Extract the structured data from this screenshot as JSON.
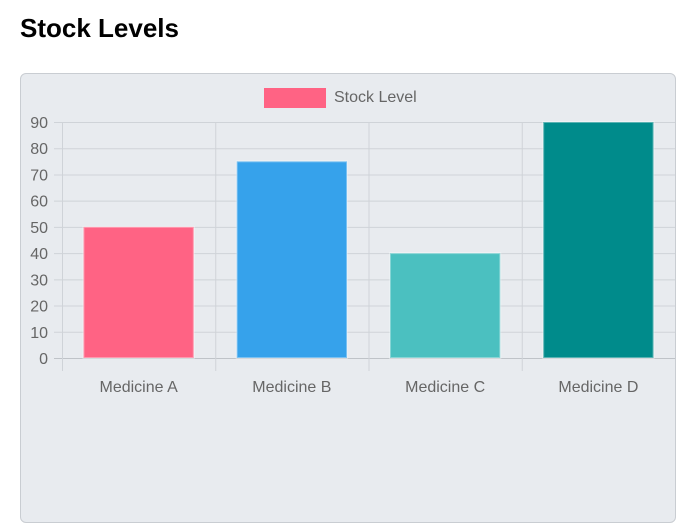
{
  "page": {
    "title": "Stock Levels"
  },
  "chart_data": {
    "type": "bar",
    "categories": [
      "Medicine A",
      "Medicine B",
      "Medicine C",
      "Medicine D"
    ],
    "series": [
      {
        "name": "Stock Level",
        "values": [
          50,
          75,
          40,
          90
        ]
      }
    ],
    "bar_colors": [
      "#ff6384",
      "#36a2eb",
      "#4bc0c0",
      "#008b8b"
    ],
    "legend_color": "#ff6384",
    "legend_position": "top",
    "ylim": [
      0,
      90
    ],
    "yticks": [
      0,
      10,
      20,
      30,
      40,
      50,
      60,
      70,
      80,
      90
    ],
    "grid": true,
    "background": "#e8ebef"
  }
}
